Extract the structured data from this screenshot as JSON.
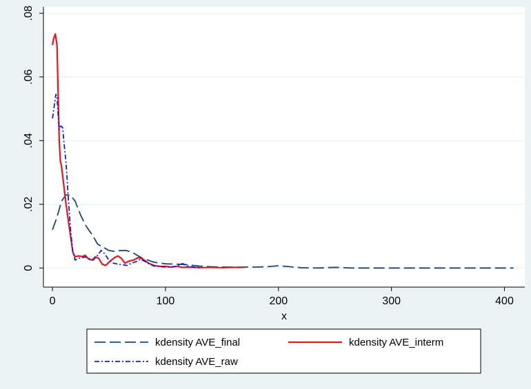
{
  "chart_data": {
    "type": "line",
    "title": "",
    "xlabel": "x",
    "ylabel": "",
    "xlim": [
      -8,
      418
    ],
    "ylim": [
      -0.006,
      0.082
    ],
    "xticks": [
      0,
      100,
      200,
      300,
      400
    ],
    "xtick_labels": [
      "0",
      "100",
      "200",
      "300",
      "400"
    ],
    "yticks": [
      0,
      0.02,
      0.04,
      0.06,
      0.08
    ],
    "ytick_labels": [
      "0",
      ".02",
      ".04",
      ".06",
      ".08"
    ],
    "grid": "horizontal",
    "legend_position": "bottom",
    "series": [
      {
        "name": "kdensity AVE_final",
        "color": "#1a476f",
        "dash": "long-dash",
        "points": [
          [
            0,
            0.012
          ],
          [
            4,
            0.016
          ],
          [
            8,
            0.021
          ],
          [
            12,
            0.023
          ],
          [
            16,
            0.0228
          ],
          [
            20,
            0.021
          ],
          [
            25,
            0.0165
          ],
          [
            30,
            0.013
          ],
          [
            35,
            0.0105
          ],
          [
            40,
            0.0075
          ],
          [
            45,
            0.0065
          ],
          [
            50,
            0.0055
          ],
          [
            55,
            0.0052
          ],
          [
            60,
            0.0055
          ],
          [
            65,
            0.0055
          ],
          [
            70,
            0.005
          ],
          [
            75,
            0.004
          ],
          [
            80,
            0.003
          ],
          [
            90,
            0.0018
          ],
          [
            100,
            0.0013
          ],
          [
            110,
            0.0012
          ],
          [
            120,
            0.001
          ],
          [
            130,
            0.0006
          ],
          [
            140,
            0.0004
          ],
          [
            150,
            0.0003
          ],
          [
            160,
            0.0003
          ],
          [
            170,
            0.0003
          ],
          [
            180,
            0.0003
          ],
          [
            190,
            0.0004
          ],
          [
            200,
            0.0007
          ],
          [
            210,
            0.0004
          ],
          [
            220,
            0.0001
          ],
          [
            235,
            0.0
          ],
          [
            250,
            0.0002
          ],
          [
            265,
            0.0
          ],
          [
            300,
            0.0
          ],
          [
            350,
            0.0
          ],
          [
            408,
            0.0
          ]
        ]
      },
      {
        "name": "kdensity AVE_interm",
        "color": "#e8151c",
        "dash": "solid",
        "points": [
          [
            0,
            0.07
          ],
          [
            1,
            0.072
          ],
          [
            2.5,
            0.0735
          ],
          [
            4,
            0.07
          ],
          [
            5,
            0.055
          ],
          [
            6,
            0.04
          ],
          [
            7,
            0.0335
          ],
          [
            8,
            0.032
          ],
          [
            10,
            0.026
          ],
          [
            12,
            0.02
          ],
          [
            14,
            0.015
          ],
          [
            16,
            0.01
          ],
          [
            18,
            0.005
          ],
          [
            20,
            0.0035
          ],
          [
            23,
            0.0038
          ],
          [
            26,
            0.0036
          ],
          [
            29,
            0.004
          ],
          [
            32,
            0.0028
          ],
          [
            35,
            0.0025
          ],
          [
            38,
            0.0035
          ],
          [
            41,
            0.003
          ],
          [
            44,
            0.0012
          ],
          [
            47,
            0.0008
          ],
          [
            50,
            0.0018
          ],
          [
            55,
            0.0033
          ],
          [
            58,
            0.0038
          ],
          [
            61,
            0.003
          ],
          [
            64,
            0.0015
          ],
          [
            68,
            0.0022
          ],
          [
            72,
            0.0025
          ],
          [
            76,
            0.0033
          ],
          [
            80,
            0.0028
          ],
          [
            85,
            0.0015
          ],
          [
            90,
            0.0008
          ],
          [
            95,
            0.0005
          ],
          [
            100,
            0.0005
          ],
          [
            105,
            0.0003
          ],
          [
            110,
            0.0005
          ],
          [
            115,
            0.0002
          ],
          [
            120,
            0.0003
          ],
          [
            130,
            0.0001
          ],
          [
            140,
            0.0002
          ],
          [
            150,
            0.0001
          ],
          [
            160,
            0.0002
          ],
          [
            170,
            0.0002
          ]
        ]
      },
      {
        "name": "kdensity AVE_raw",
        "color": "#0f20d8",
        "dash": "dash-dot",
        "points": [
          [
            0,
            0.047
          ],
          [
            2,
            0.052
          ],
          [
            3,
            0.0545
          ],
          [
            4,
            0.054
          ],
          [
            5,
            0.048
          ],
          [
            6,
            0.0435
          ],
          [
            7,
            0.0445
          ],
          [
            8,
            0.0445
          ],
          [
            9,
            0.044
          ],
          [
            10,
            0.04
          ],
          [
            12,
            0.033
          ],
          [
            14,
            0.022
          ],
          [
            16,
            0.012
          ],
          [
            18,
            0.005
          ],
          [
            20,
            0.0025
          ],
          [
            23,
            0.003
          ],
          [
            26,
            0.0032
          ],
          [
            29,
            0.0035
          ],
          [
            32,
            0.003
          ],
          [
            36,
            0.0025
          ],
          [
            40,
            0.004
          ],
          [
            43,
            0.0055
          ],
          [
            46,
            0.0045
          ],
          [
            50,
            0.0025
          ],
          [
            54,
            0.0015
          ],
          [
            58,
            0.0012
          ],
          [
            62,
            0.001
          ],
          [
            66,
            0.0008
          ],
          [
            70,
            0.0015
          ],
          [
            74,
            0.002
          ],
          [
            78,
            0.0028
          ],
          [
            82,
            0.002
          ],
          [
            86,
            0.0012
          ],
          [
            90,
            0.0006
          ],
          [
            95,
            0.0004
          ],
          [
            100,
            0.0003
          ],
          [
            105,
            0.0003
          ],
          [
            110,
            0.0006
          ],
          [
            115,
            0.0014
          ],
          [
            120,
            0.0006
          ],
          [
            125,
            0.0003
          ],
          [
            130,
            0.0002
          ]
        ]
      }
    ]
  }
}
